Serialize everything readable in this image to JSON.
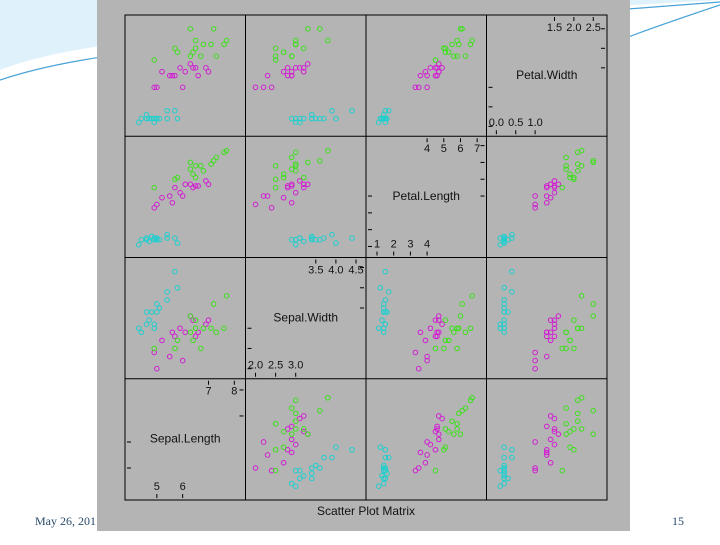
{
  "slide": {
    "date": "May 26, 201",
    "page_number": "15"
  },
  "chart_data": {
    "type": "scatter_matrix",
    "title": "Scatter Plot Matrix",
    "variables": [
      {
        "name": "Sepal.Length",
        "lim": [
          4,
          8.2
        ],
        "low_ticks": [
          5,
          6
        ],
        "high_ticks": [
          7,
          8
        ]
      },
      {
        "name": "Sepal.Width",
        "lim": [
          1.9,
          4.6
        ],
        "low_ticks": [
          {
            "value": 2,
            "label": "2.0"
          },
          2.5,
          {
            "value": 3,
            "label": "3.0"
          }
        ],
        "high_ticks": [
          3.5,
          {
            "value": 4,
            "label": "4.0"
          },
          4.5
        ]
      },
      {
        "name": "Petal.Length",
        "lim": [
          0.7,
          7.2
        ],
        "low_ticks": [
          1,
          2,
          3,
          4
        ],
        "high_ticks": [
          4,
          5,
          6,
          7
        ]
      },
      {
        "name": "Petal.Width",
        "lim": [
          -0.1,
          2.7
        ],
        "low_ticks": [
          {
            "value": 0,
            "label": "0.0"
          },
          0.5,
          {
            "value": 1,
            "label": "1.0"
          }
        ],
        "high_ticks": [
          1.5,
          {
            "value": 2,
            "label": "2.0"
          },
          2.5
        ]
      }
    ],
    "series": [
      {
        "color": "#1fcfcf",
        "values": [
          [
            5.1,
            4.9,
            4.7,
            4.6,
            5.0,
            5.4,
            4.6,
            5.0,
            4.4,
            4.9,
            5.4,
            4.8,
            5.8,
            5.7,
            4.3
          ],
          [
            3.5,
            3.0,
            3.2,
            3.1,
            3.6,
            3.9,
            3.4,
            3.4,
            2.9,
            3.1,
            3.7,
            3.4,
            4.0,
            4.4,
            3.0
          ],
          [
            1.4,
            1.4,
            1.3,
            1.5,
            1.4,
            1.7,
            1.4,
            1.5,
            1.4,
            1.5,
            1.5,
            1.6,
            1.2,
            1.5,
            1.1
          ],
          [
            0.2,
            0.2,
            0.2,
            0.2,
            0.2,
            0.4,
            0.3,
            0.2,
            0.2,
            0.1,
            0.2,
            0.2,
            0.2,
            0.4,
            0.1
          ]
        ]
      },
      {
        "color": "#d21ed2",
        "values": [
          [
            7.0,
            6.4,
            6.9,
            5.5,
            6.5,
            5.7,
            6.3,
            4.9,
            6.6,
            5.2,
            5.0,
            5.9,
            6.0,
            6.1,
            5.6
          ],
          [
            3.2,
            3.2,
            3.1,
            2.3,
            2.8,
            2.8,
            3.3,
            2.4,
            2.9,
            2.7,
            2.0,
            3.0,
            2.2,
            2.9,
            2.9
          ],
          [
            4.7,
            4.5,
            4.9,
            4.0,
            4.6,
            4.5,
            4.7,
            3.3,
            4.6,
            3.9,
            3.5,
            4.2,
            4.0,
            4.7,
            3.6
          ],
          [
            1.4,
            1.5,
            1.5,
            1.3,
            1.5,
            1.3,
            1.6,
            1.0,
            1.3,
            1.4,
            1.0,
            1.5,
            1.0,
            1.4,
            1.3
          ]
        ]
      },
      {
        "color": "#3ee01c",
        "values": [
          [
            6.3,
            5.8,
            7.1,
            6.3,
            6.5,
            7.6,
            4.9,
            7.3,
            6.7,
            7.2,
            6.5,
            6.4,
            6.8,
            5.7,
            7.7
          ],
          [
            3.3,
            2.7,
            3.0,
            2.9,
            3.0,
            3.0,
            2.5,
            2.9,
            2.5,
            3.6,
            3.2,
            2.7,
            3.0,
            2.5,
            3.8
          ],
          [
            6.0,
            5.1,
            5.9,
            5.6,
            5.8,
            6.6,
            4.5,
            6.3,
            5.8,
            6.1,
            5.1,
            5.3,
            5.5,
            5.0,
            6.7
          ],
          [
            2.5,
            1.9,
            2.1,
            1.8,
            2.2,
            2.1,
            1.7,
            1.8,
            1.8,
            2.5,
            2.0,
            1.9,
            2.1,
            2.0,
            2.2
          ]
        ]
      }
    ]
  }
}
